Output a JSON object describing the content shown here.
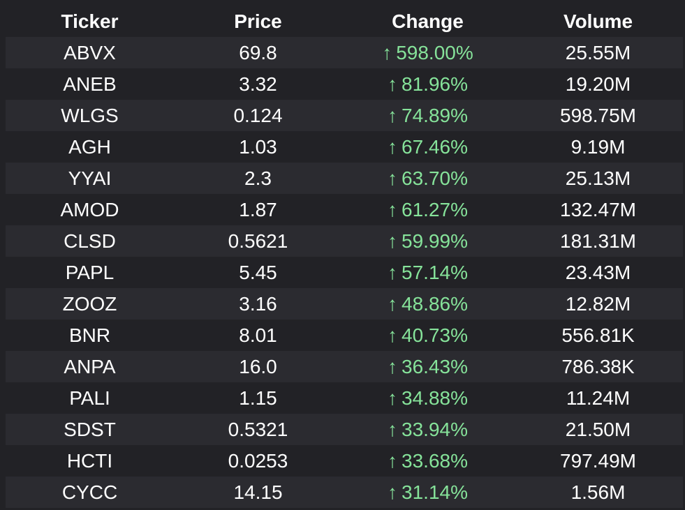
{
  "table": {
    "headers": {
      "ticker": "Ticker",
      "price": "Price",
      "change": "Change",
      "volume": "Volume"
    },
    "change_arrow": "↑",
    "colors": {
      "background": "#222226",
      "row_alt": "#2b2b30",
      "positive": "#86e39a",
      "text": "#ffffff"
    },
    "rows": [
      {
        "ticker": "ABVX",
        "price": "69.8",
        "change": "598.00%",
        "volume": "25.55M"
      },
      {
        "ticker": "ANEB",
        "price": "3.32",
        "change": "81.96%",
        "volume": "19.20M"
      },
      {
        "ticker": "WLGS",
        "price": "0.124",
        "change": "74.89%",
        "volume": "598.75M"
      },
      {
        "ticker": "AGH",
        "price": "1.03",
        "change": "67.46%",
        "volume": "9.19M"
      },
      {
        "ticker": "YYAI",
        "price": "2.3",
        "change": "63.70%",
        "volume": "25.13M"
      },
      {
        "ticker": "AMOD",
        "price": "1.87",
        "change": "61.27%",
        "volume": "132.47M"
      },
      {
        "ticker": "CLSD",
        "price": "0.5621",
        "change": "59.99%",
        "volume": "181.31M"
      },
      {
        "ticker": "PAPL",
        "price": "5.45",
        "change": "57.14%",
        "volume": "23.43M"
      },
      {
        "ticker": "ZOOZ",
        "price": "3.16",
        "change": "48.86%",
        "volume": "12.82M"
      },
      {
        "ticker": "BNR",
        "price": "8.01",
        "change": "40.73%",
        "volume": "556.81K"
      },
      {
        "ticker": "ANPA",
        "price": "16.0",
        "change": "36.43%",
        "volume": "786.38K"
      },
      {
        "ticker": "PALI",
        "price": "1.15",
        "change": "34.88%",
        "volume": "11.24M"
      },
      {
        "ticker": "SDST",
        "price": "0.5321",
        "change": "33.94%",
        "volume": "21.50M"
      },
      {
        "ticker": "HCTI",
        "price": "0.0253",
        "change": "33.68%",
        "volume": "797.49M"
      },
      {
        "ticker": "CYCC",
        "price": "14.15",
        "change": "31.14%",
        "volume": "1.56M"
      }
    ]
  }
}
